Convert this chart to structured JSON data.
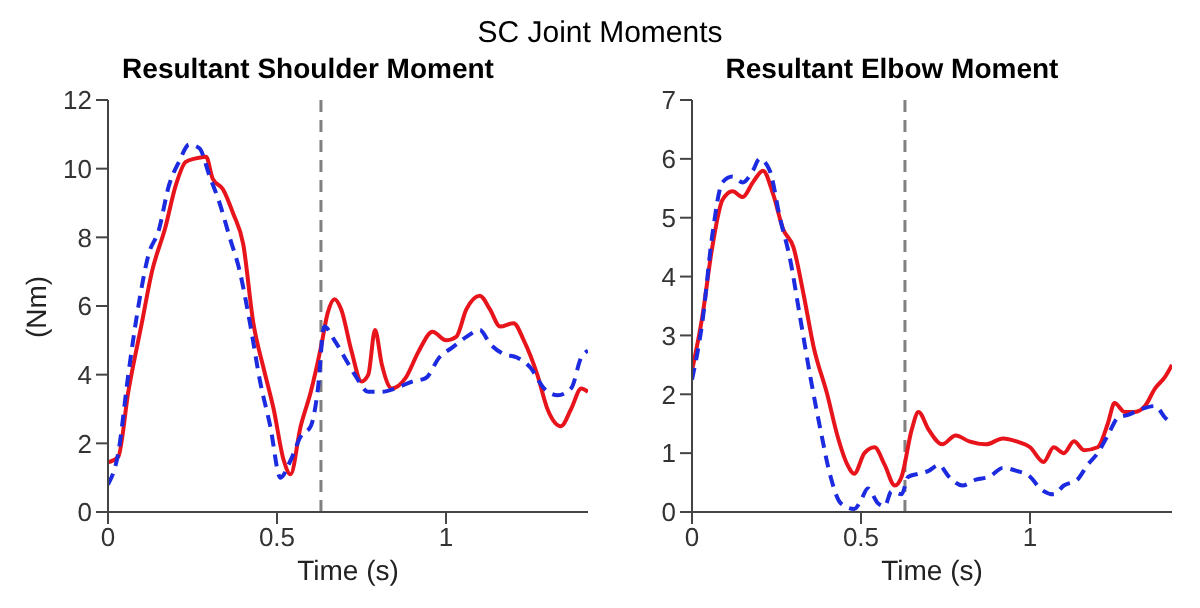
{
  "chart_data": [
    {
      "type": "line",
      "title": "Resultant Shoulder Moment",
      "annotations": [
        "SC Joint Moments"
      ],
      "xlabel": "Time (s)",
      "ylabel": "(Nm)",
      "xlim": [
        0,
        1.42
      ],
      "xticks": [
        0,
        0.5,
        1
      ],
      "ylim": [
        0,
        12
      ],
      "yticks": [
        0,
        2,
        4,
        6,
        8,
        10,
        12
      ],
      "grid": false,
      "legend": false,
      "ref_lines": [
        {
          "axis": "x",
          "value": 0.63,
          "color": "#808080",
          "line_style": "dashed"
        }
      ],
      "series": [
        {
          "color": "#e8141c",
          "line_style": "solid",
          "x": [
            0,
            0.03,
            0.06,
            0.1,
            0.13,
            0.17,
            0.2,
            0.23,
            0.26,
            0.29,
            0.31,
            0.34,
            0.37,
            0.4,
            0.43,
            0.46,
            0.49,
            0.52,
            0.54,
            0.57,
            0.6,
            0.63,
            0.65,
            0.67,
            0.69,
            0.72,
            0.75,
            0.77,
            0.79,
            0.81,
            0.84,
            0.88,
            0.92,
            0.96,
            1.0,
            1.03,
            1.06,
            1.1,
            1.13,
            1.16,
            1.2,
            1.23,
            1.27,
            1.3,
            1.34,
            1.37,
            1.4,
            1.42
          ],
          "values": [
            1.45,
            1.6,
            3.5,
            5.5,
            7,
            8.3,
            9.5,
            10.2,
            10.3,
            10.35,
            9.7,
            9.4,
            8.7,
            7.8,
            5.5,
            4.2,
            3.0,
            1.5,
            1.1,
            2.5,
            3.5,
            4.8,
            5.8,
            6.2,
            5.9,
            4.7,
            3.8,
            4.0,
            5.3,
            4.3,
            3.6,
            3.9,
            4.7,
            5.25,
            5.0,
            5.1,
            5.9,
            6.3,
            5.9,
            5.4,
            5.5,
            5.0,
            4.0,
            3.0,
            2.5,
            3.0,
            3.6,
            3.5
          ]
        },
        {
          "color": "#1c2be0",
          "line_style": "dashed",
          "x": [
            0,
            0.03,
            0.06,
            0.09,
            0.12,
            0.15,
            0.18,
            0.21,
            0.24,
            0.27,
            0.3,
            0.33,
            0.36,
            0.39,
            0.42,
            0.45,
            0.48,
            0.51,
            0.54,
            0.57,
            0.6,
            0.62,
            0.64,
            0.67,
            0.7,
            0.73,
            0.77,
            0.81,
            0.85,
            0.9,
            0.94,
            0.98,
            1.02,
            1.06,
            1.1,
            1.13,
            1.17,
            1.21,
            1.25,
            1.29,
            1.33,
            1.37,
            1.4,
            1.42
          ],
          "values": [
            0.8,
            1.7,
            4,
            6,
            7.5,
            8.2,
            9.5,
            10.2,
            10.7,
            10.6,
            9.8,
            9,
            8,
            7,
            5.5,
            3.8,
            2.5,
            1.0,
            1.5,
            2.2,
            2.5,
            3.5,
            5.4,
            5.0,
            4.5,
            4.0,
            3.5,
            3.5,
            3.6,
            3.8,
            3.9,
            4.5,
            4.8,
            5.1,
            5.3,
            4.9,
            4.6,
            4.5,
            4.2,
            3.6,
            3.4,
            3.6,
            4.5,
            4.7
          ]
        }
      ]
    },
    {
      "type": "line",
      "title": "Resultant Elbow Moment",
      "xlabel": "Time (s)",
      "xlim": [
        0,
        1.42
      ],
      "xticks": [
        0,
        0.5,
        1
      ],
      "ylim": [
        0,
        7
      ],
      "yticks": [
        0,
        1,
        2,
        3,
        4,
        5,
        6,
        7
      ],
      "grid": false,
      "legend": false,
      "ref_lines": [
        {
          "axis": "x",
          "value": 0.63,
          "color": "#808080",
          "line_style": "dashed"
        }
      ],
      "series": [
        {
          "color": "#e8141c",
          "line_style": "solid",
          "x": [
            0,
            0.03,
            0.06,
            0.09,
            0.12,
            0.15,
            0.18,
            0.21,
            0.24,
            0.27,
            0.3,
            0.33,
            0.36,
            0.4,
            0.43,
            0.46,
            0.48,
            0.51,
            0.54,
            0.57,
            0.6,
            0.62,
            0.65,
            0.67,
            0.7,
            0.74,
            0.78,
            0.82,
            0.87,
            0.92,
            0.96,
            1.0,
            1.04,
            1.07,
            1.1,
            1.13,
            1.16,
            1.2,
            1.23,
            1.25,
            1.28,
            1.31,
            1.34,
            1.37,
            1.4,
            1.42
          ],
          "values": [
            2.4,
            3.3,
            4.5,
            5.3,
            5.45,
            5.35,
            5.6,
            5.8,
            5.4,
            4.8,
            4.5,
            3.7,
            2.8,
            2.0,
            1.3,
            0.8,
            0.65,
            1.0,
            1.1,
            0.8,
            0.45,
            0.6,
            1.4,
            1.7,
            1.4,
            1.15,
            1.3,
            1.2,
            1.15,
            1.25,
            1.2,
            1.1,
            0.85,
            1.1,
            1.0,
            1.2,
            1.05,
            1.1,
            1.5,
            1.85,
            1.7,
            1.7,
            1.8,
            2.1,
            2.3,
            2.5
          ]
        },
        {
          "color": "#1c2be0",
          "line_style": "dashed",
          "x": [
            0,
            0.03,
            0.06,
            0.09,
            0.12,
            0.15,
            0.18,
            0.2,
            0.23,
            0.26,
            0.29,
            0.32,
            0.35,
            0.38,
            0.41,
            0.44,
            0.48,
            0.5,
            0.52,
            0.55,
            0.57,
            0.59,
            0.62,
            0.64,
            0.67,
            0.7,
            0.73,
            0.76,
            0.8,
            0.84,
            0.88,
            0.92,
            0.96,
            1.0,
            1.03,
            1.07,
            1.1,
            1.14,
            1.17,
            1.2,
            1.23,
            1.26,
            1.29,
            1.33,
            1.37,
            1.4,
            1.42
          ],
          "values": [
            2.25,
            3.2,
            4.7,
            5.6,
            5.7,
            5.6,
            5.8,
            6.0,
            5.8,
            5.0,
            4.3,
            3.3,
            2.3,
            1.4,
            0.6,
            0.15,
            0.05,
            0.2,
            0.4,
            0.15,
            0.1,
            0.35,
            0.3,
            0.6,
            0.65,
            0.7,
            0.8,
            0.6,
            0.45,
            0.55,
            0.6,
            0.75,
            0.7,
            0.6,
            0.4,
            0.3,
            0.45,
            0.55,
            0.8,
            1.0,
            1.3,
            1.6,
            1.65,
            1.75,
            1.8,
            1.6,
            1.5
          ]
        }
      ]
    }
  ]
}
